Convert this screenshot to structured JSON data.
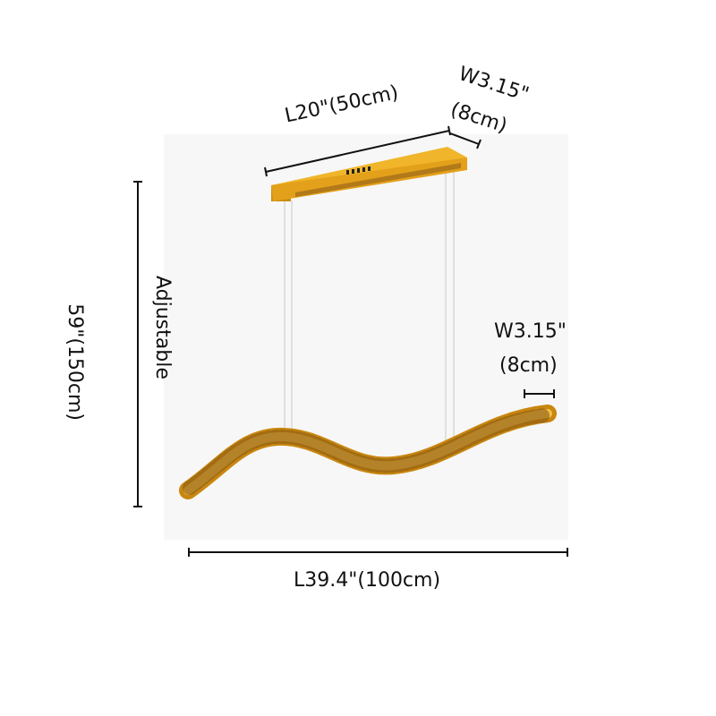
{
  "dimensions": {
    "canopy_length": "L20\"(50cm)",
    "canopy_width_line1": "W3.15\"",
    "canopy_width_line2": "(8cm)",
    "height": "59\"(150cm)",
    "height_note": "Adjustable",
    "fixture_width_line1": "W3.15\"",
    "fixture_width_line2": "(8cm)",
    "fixture_length": "L39.4\"(100cm)"
  },
  "colors": {
    "background_panel": "#f7f7f7",
    "gold": "#e0a21c",
    "gold_dark": "#b87a10",
    "dimension_line": "#111111"
  }
}
